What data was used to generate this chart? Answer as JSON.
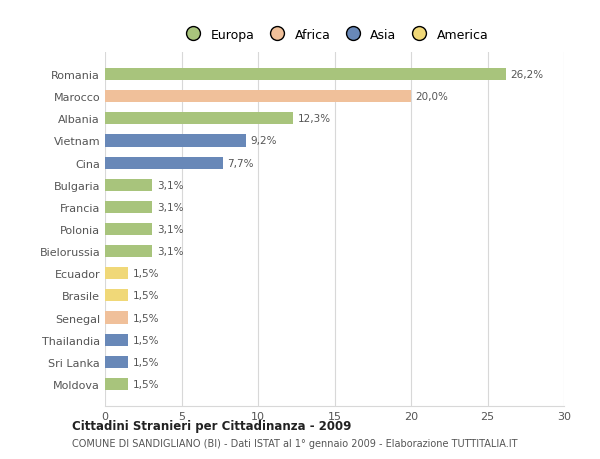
{
  "categories": [
    "Romania",
    "Marocco",
    "Albania",
    "Vietnam",
    "Cina",
    "Bulgaria",
    "Francia",
    "Polonia",
    "Bielorussia",
    "Ecuador",
    "Brasile",
    "Senegal",
    "Thailandia",
    "Sri Lanka",
    "Moldova"
  ],
  "values": [
    26.2,
    20.0,
    12.3,
    9.2,
    7.7,
    3.1,
    3.1,
    3.1,
    3.1,
    1.5,
    1.5,
    1.5,
    1.5,
    1.5,
    1.5
  ],
  "labels": [
    "26,2%",
    "20,0%",
    "12,3%",
    "9,2%",
    "7,7%",
    "3,1%",
    "3,1%",
    "3,1%",
    "3,1%",
    "1,5%",
    "1,5%",
    "1,5%",
    "1,5%",
    "1,5%",
    "1,5%"
  ],
  "colors": [
    "#a8c47c",
    "#f0c09a",
    "#a8c47c",
    "#6888b8",
    "#6888b8",
    "#a8c47c",
    "#a8c47c",
    "#a8c47c",
    "#a8c47c",
    "#f0d878",
    "#f0d878",
    "#f0c09a",
    "#6888b8",
    "#6888b8",
    "#a8c47c"
  ],
  "legend_labels": [
    "Europa",
    "Africa",
    "Asia",
    "America"
  ],
  "legend_colors": [
    "#a8c47c",
    "#f0c09a",
    "#6888b8",
    "#f0d878"
  ],
  "title": "Cittadini Stranieri per Cittadinanza - 2009",
  "subtitle": "COMUNE DI SANDIGLIANO (BI) - Dati ISTAT al 1° gennaio 2009 - Elaborazione TUTTITALIA.IT",
  "xlim": [
    0,
    30
  ],
  "xticks": [
    0,
    5,
    10,
    15,
    20,
    25,
    30
  ],
  "background_color": "#ffffff",
  "grid_color": "#d8d8d8",
  "bar_height": 0.55
}
